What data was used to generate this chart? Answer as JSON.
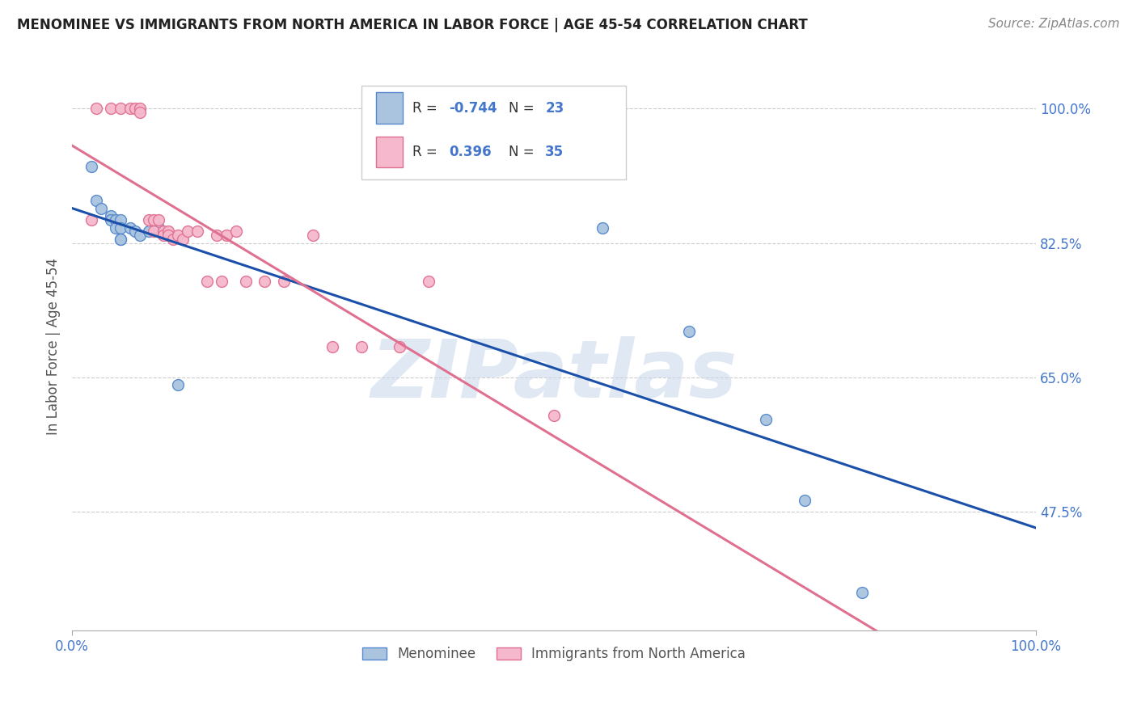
{
  "title": "MENOMINEE VS IMMIGRANTS FROM NORTH AMERICA IN LABOR FORCE | AGE 45-54 CORRELATION CHART",
  "source": "Source: ZipAtlas.com",
  "ylabel": "In Labor Force | Age 45-54",
  "xlim": [
    0.0,
    1.0
  ],
  "ylim": [
    0.32,
    1.06
  ],
  "xtick_positions": [
    0.0,
    1.0
  ],
  "xtick_labels": [
    "0.0%",
    "100.0%"
  ],
  "ytick_values": [
    1.0,
    0.825,
    0.65,
    0.475
  ],
  "ytick_labels": [
    "100.0%",
    "82.5%",
    "65.0%",
    "47.5%"
  ],
  "grid_color": "#cccccc",
  "background_color": "#ffffff",
  "menominee_color": "#aac4e0",
  "immigrants_color": "#f5b8cc",
  "menominee_edge": "#5588cc",
  "immigrants_edge": "#e07090",
  "line_blue": "#1a4faa",
  "line_pink": "#e07090",
  "R_menominee": -0.744,
  "N_menominee": 23,
  "R_immigrants": 0.396,
  "N_immigrants": 35,
  "menominee_x": [
    0.02,
    0.025,
    0.03,
    0.04,
    0.04,
    0.045,
    0.045,
    0.05,
    0.05,
    0.05,
    0.05,
    0.06,
    0.065,
    0.07,
    0.08,
    0.09,
    0.1,
    0.11,
    0.55,
    0.64,
    0.72,
    0.76,
    0.82
  ],
  "menominee_y": [
    0.925,
    0.88,
    0.87,
    0.86,
    0.855,
    0.855,
    0.845,
    0.855,
    0.845,
    0.83,
    0.83,
    0.845,
    0.84,
    0.835,
    0.84,
    0.845,
    0.835,
    0.64,
    0.845,
    0.71,
    0.595,
    0.49,
    0.37
  ],
  "immigrants_x": [
    0.02,
    0.025,
    0.04,
    0.05,
    0.06,
    0.065,
    0.07,
    0.07,
    0.08,
    0.085,
    0.085,
    0.09,
    0.095,
    0.095,
    0.1,
    0.1,
    0.105,
    0.11,
    0.115,
    0.12,
    0.13,
    0.14,
    0.15,
    0.155,
    0.16,
    0.17,
    0.18,
    0.2,
    0.22,
    0.25,
    0.27,
    0.3,
    0.34,
    0.37,
    0.5
  ],
  "immigrants_y": [
    0.855,
    1.0,
    1.0,
    1.0,
    1.0,
    1.0,
    1.0,
    0.995,
    0.855,
    0.855,
    0.84,
    0.855,
    0.84,
    0.835,
    0.84,
    0.835,
    0.83,
    0.835,
    0.83,
    0.84,
    0.84,
    0.775,
    0.835,
    0.775,
    0.835,
    0.84,
    0.775,
    0.775,
    0.775,
    0.835,
    0.69,
    0.69,
    0.69,
    0.775,
    0.6
  ],
  "watermark_text": "ZIPatlas",
  "watermark_color": "#c8d8ea",
  "watermark_alpha": 0.55,
  "marker_size": 100
}
